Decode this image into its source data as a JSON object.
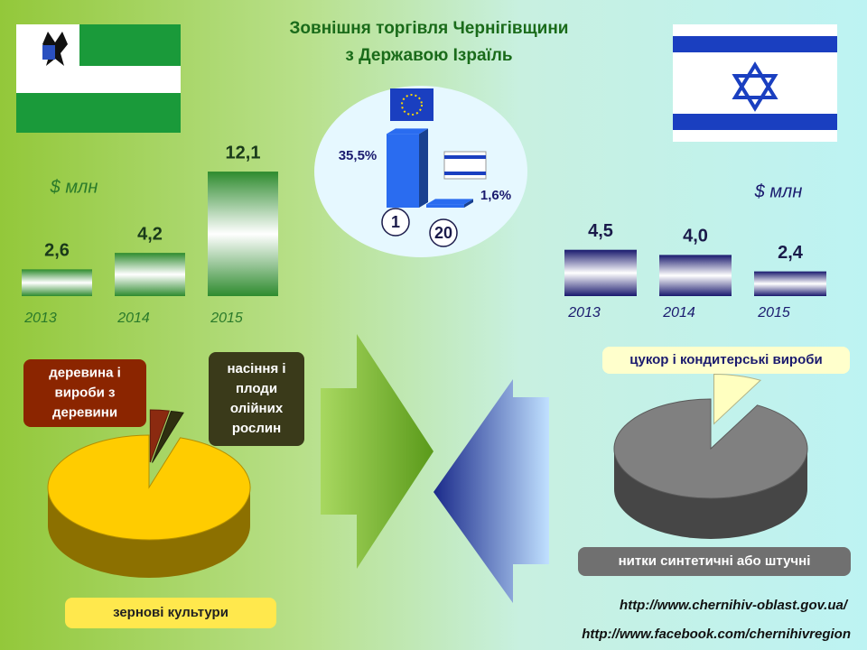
{
  "title": "Зовнішня торгівля Чернігівщини",
  "subtitle": "з Державою Ізраїль",
  "links": [
    "http://www.chernihiv-oblast.gov.ua/",
    "http://www.facebook.com/chernihivregion"
  ],
  "chart_data": [
    {
      "type": "bar",
      "unit": "$ млн",
      "categories": [
        "2013",
        "2014",
        "2015"
      ],
      "values": [
        2.6,
        4.2,
        12.1
      ],
      "value_labels": [
        "2,6",
        "4,2",
        "12,1"
      ],
      "color": "#2e8b2e"
    },
    {
      "type": "bar",
      "unit": "$ млн",
      "categories": [
        "2013",
        "2014",
        "2015"
      ],
      "values": [
        4.5,
        4.0,
        2.4
      ],
      "value_labels": [
        "4,5",
        "4,0",
        "2,4"
      ],
      "color": "#1a1a6e"
    },
    {
      "type": "bar",
      "categories": [
        "1",
        "20"
      ],
      "values": [
        35.5,
        1.6
      ],
      "value_labels": [
        "35,5%",
        "1,6%"
      ],
      "color": "#2a6cf0"
    },
    {
      "type": "pie",
      "categories": [
        "деревина і вироби з деревини",
        "насіння і плоди олійних рослин",
        "зернові культури"
      ],
      "values": [
        3,
        2,
        95
      ],
      "colors": [
        "#8b2a10",
        "#2f2f10",
        "#ffcc00"
      ]
    },
    {
      "type": "pie",
      "categories": [
        "цукор і кондитерські вироби",
        "нитки синтетичні або штучні"
      ],
      "values": [
        8,
        92
      ],
      "colors": [
        "#ffffc0",
        "#808080"
      ]
    }
  ]
}
